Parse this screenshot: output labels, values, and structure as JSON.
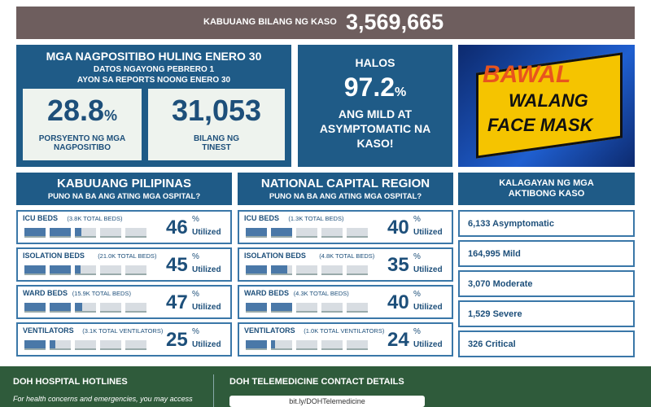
{
  "header": {
    "label": "KABUUANG BILANG NG KASO",
    "total": "3,569,665"
  },
  "positivity": {
    "title": "MGA NAGPOSITIBO HULING ENERO 30",
    "lines": [
      "DATOS NGAYONG PEBRERO 1",
      "AYON SA REPORTS NOONG ENERO 30"
    ],
    "rate": {
      "value": "28.8",
      "unit": "%",
      "label": "PORSYENTO NG MGA NAGPOSITIBO"
    },
    "tested": {
      "value": "31,053",
      "label": "BILANG NG TINEST"
    }
  },
  "mild": {
    "lead": "HALOS",
    "value": "97.2",
    "unit": "%",
    "label": "ANG MILD AT ASYMPTOMATIC NA KASO!"
  },
  "banner": {
    "lines": [
      "BAWAL",
      "WALANG",
      "FACE MASK"
    ]
  },
  "percent_sign": "%",
  "utilized": "Utilized",
  "hospital_panels": [
    {
      "title": "KABUUANG PILIPINAS",
      "subtitle": "PUNO NA BA ANG ATING MGA OSPITAL?",
      "rows": [
        {
          "label": "ICU BEDS",
          "detail": "(3.8K TOTAL BEDS)",
          "percent": 46
        },
        {
          "label": "ISOLATION BEDS",
          "detail": "(21.0K TOTAL BEDS)",
          "percent": 45
        },
        {
          "label": "WARD BEDS",
          "detail": "(15.9K TOTAL BEDS)",
          "percent": 47
        },
        {
          "label": "VENTILATORS",
          "detail": "(3.1K TOTAL VENTILATORS)",
          "percent": 25
        }
      ]
    },
    {
      "title": "NATIONAL CAPITAL REGION",
      "subtitle": "PUNO NA BA ANG ATING MGA OSPITAL?",
      "rows": [
        {
          "label": "ICU BEDS",
          "detail": "(1.3K TOTAL BEDS)",
          "percent": 40
        },
        {
          "label": "ISOLATION BEDS",
          "detail": "(4.8K TOTAL BEDS)",
          "percent": 35
        },
        {
          "label": "WARD BEDS",
          "detail": "(4.3K TOTAL BEDS)",
          "percent": 40
        },
        {
          "label": "VENTILATORS",
          "detail": "(1.0K TOTAL VENTILATORS)",
          "percent": 24
        }
      ]
    }
  ],
  "active_cases": {
    "title": "KALAGAYAN NG MGA AKTIBONG KASO",
    "rows": [
      "6,133 Asymptomatic",
      "164,995 Mild",
      "3,070 Moderate",
      "1,529 Severe",
      "326 Critical"
    ]
  },
  "footer": {
    "left_title": "DOH HOSPITAL HOTLINES",
    "left_text": "For health concerns and emergencies, you may access",
    "right_title": "DOH TELEMEDICINE CONTACT DETAILS",
    "link": "bit.ly/DOHTelemedicine"
  }
}
